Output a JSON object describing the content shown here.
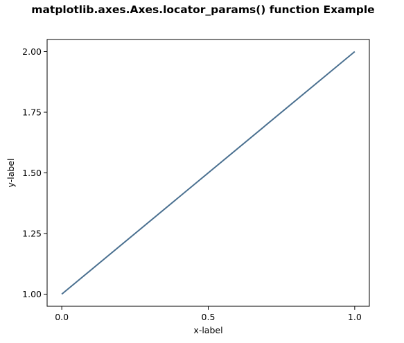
{
  "chart_data": {
    "type": "line",
    "title": "matplotlib.axes.Axes.locator_params() function Example",
    "xlabel": "x-label",
    "ylabel": "y-label",
    "xlim": [
      -0.05,
      1.05
    ],
    "ylim": [
      0.95,
      2.05
    ],
    "xticks": [
      0.0,
      0.5,
      1.0
    ],
    "xtick_labels": [
      "0.0",
      "0.5",
      "1.0"
    ],
    "yticks": [
      1.0,
      1.25,
      1.5,
      1.75,
      2.0
    ],
    "ytick_labels": [
      "1.00",
      "1.25",
      "1.50",
      "1.75",
      "2.00"
    ],
    "grid": false,
    "series": [
      {
        "x": [
          0.0,
          1.0
        ],
        "y": [
          1.0,
          2.0
        ],
        "color": "#4a7090"
      }
    ]
  }
}
